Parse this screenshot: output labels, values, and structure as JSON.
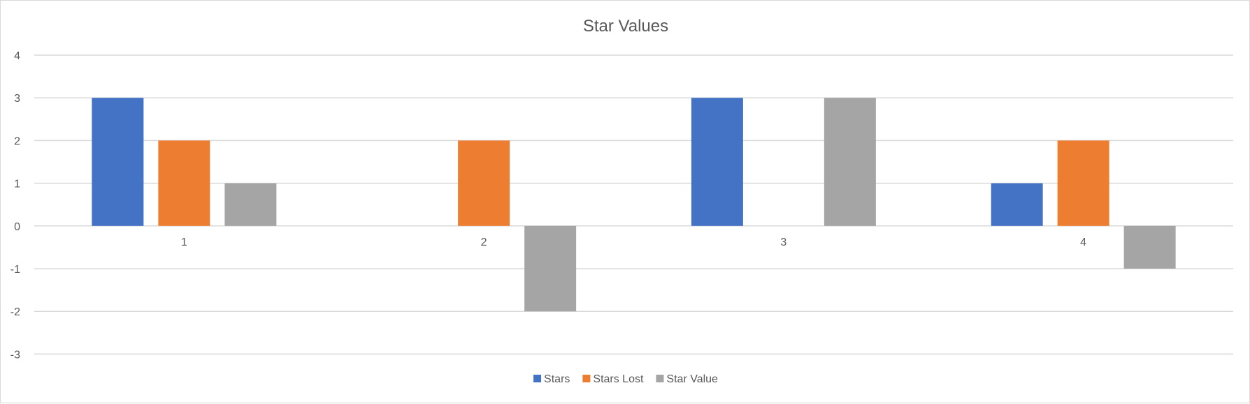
{
  "chart_data": {
    "type": "bar",
    "title": "Star Values",
    "xlabel": "",
    "ylabel": "",
    "categories": [
      "1",
      "2",
      "3",
      "4"
    ],
    "series": [
      {
        "name": "Stars",
        "values": [
          3,
          0,
          3,
          1
        ],
        "color": "#4472C4"
      },
      {
        "name": "Stars Lost",
        "values": [
          2,
          2,
          0,
          2
        ],
        "color": "#ED7D31"
      },
      {
        "name": "Star Value",
        "values": [
          1,
          -2,
          3,
          -1
        ],
        "color": "#A5A5A5"
      }
    ],
    "ylim": [
      -3,
      4
    ],
    "yticks": [
      4,
      3,
      2,
      1,
      0,
      -1,
      -2,
      -3
    ],
    "grid": true,
    "gridline_color": "#D9D9D9",
    "legend_position": "bottom"
  }
}
